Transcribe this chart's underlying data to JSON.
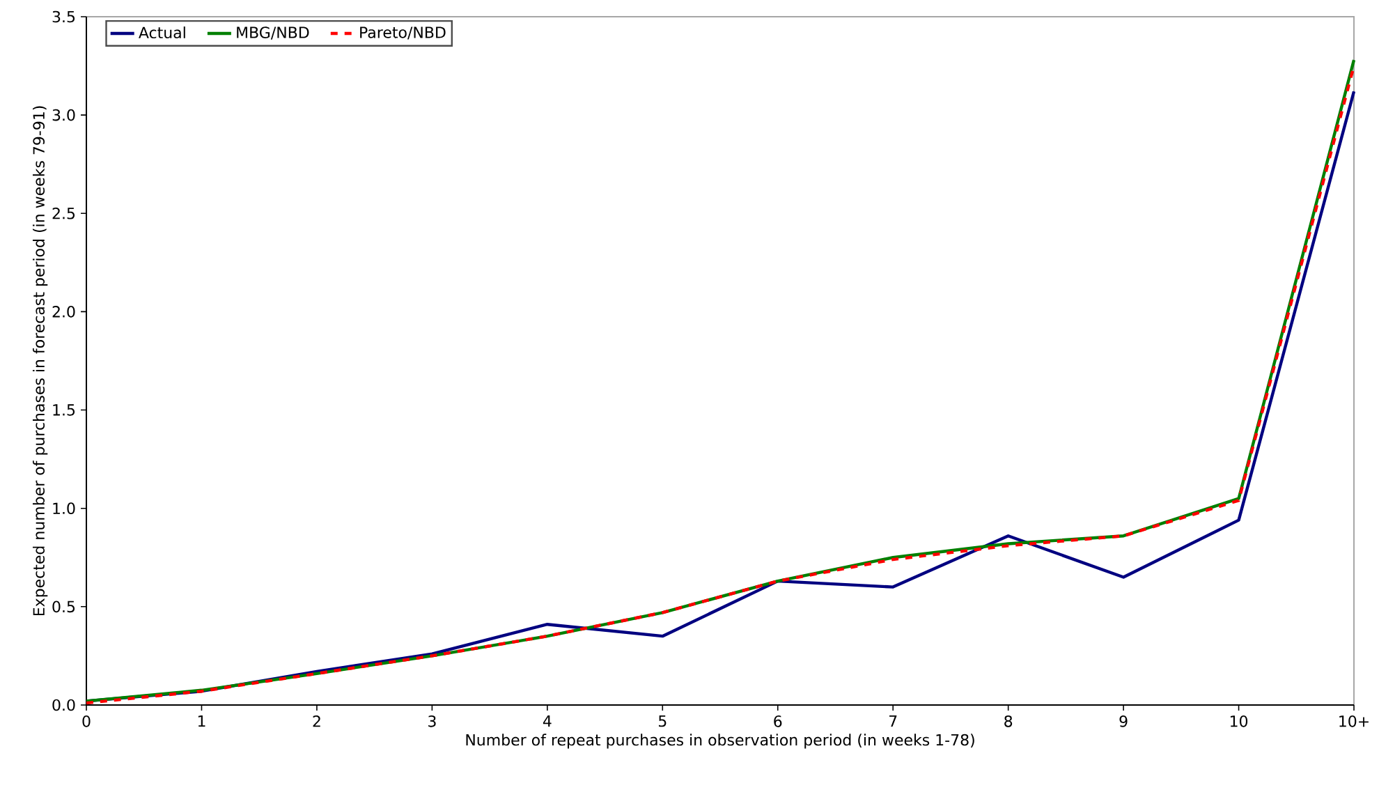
{
  "chart_data": {
    "type": "line",
    "xlabel": "Number of repeat purchases in observation period (in weeks 1-78)",
    "ylabel": "Expected number of purchases in forecast period (in weeks 79-91)",
    "categories": [
      "0",
      "1",
      "2",
      "3",
      "4",
      "5",
      "6",
      "7",
      "8",
      "9",
      "10",
      "10+"
    ],
    "series": [
      {
        "name": "Actual",
        "color": "#000080",
        "line_style": "solid",
        "values": [
          0.02,
          0.07,
          0.17,
          0.26,
          0.41,
          0.35,
          0.63,
          0.6,
          0.86,
          0.65,
          0.94,
          3.12
        ]
      },
      {
        "name": "MBG/NBD",
        "color": "#008000",
        "line_style": "solid",
        "values": [
          0.02,
          0.075,
          0.16,
          0.25,
          0.35,
          0.47,
          0.63,
          0.75,
          0.82,
          0.86,
          1.05,
          3.28
        ]
      },
      {
        "name": "Pareto/NBD",
        "color": "#ff0000",
        "line_style": "dashed",
        "values": [
          0.01,
          0.07,
          0.16,
          0.25,
          0.35,
          0.47,
          0.63,
          0.74,
          0.81,
          0.86,
          1.04,
          3.25
        ]
      }
    ],
    "ylim": [
      0,
      3.5
    ],
    "yticks": [
      {
        "value": 0,
        "label": "0.0"
      },
      {
        "value": 0.5,
        "label": "0.5"
      },
      {
        "value": 1,
        "label": "1.0"
      },
      {
        "value": 1.5,
        "label": "1.5"
      },
      {
        "value": 2,
        "label": "2.0"
      },
      {
        "value": 2.5,
        "label": "2.5"
      },
      {
        "value": 3,
        "label": "3.0"
      },
      {
        "value": 3.5,
        "label": "3.5"
      }
    ],
    "legend": "top left",
    "grid": false,
    "marker": "none"
  }
}
